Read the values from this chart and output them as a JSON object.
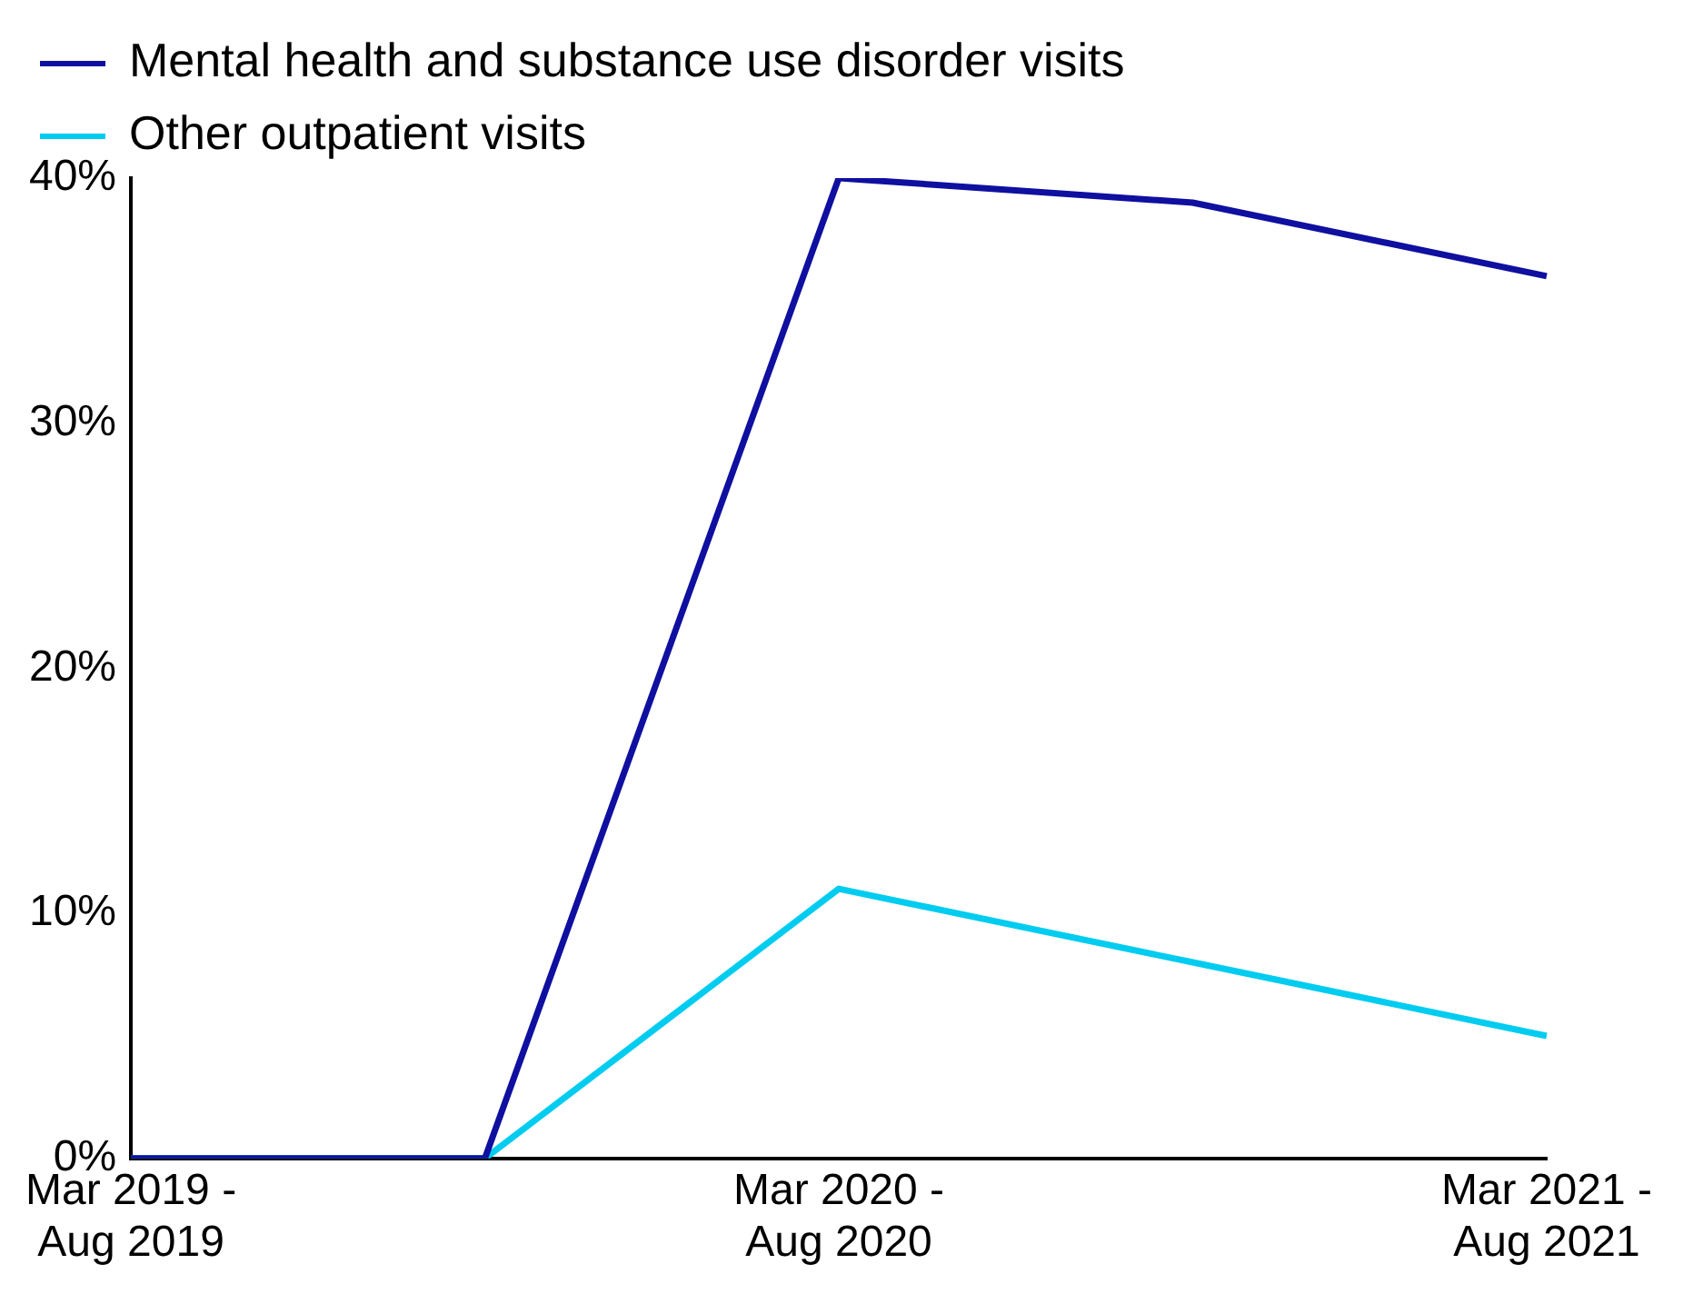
{
  "chart_data": {
    "type": "line",
    "categories": [
      "Mar 2019 -\nAug 2019",
      null,
      "Mar 2020 -\nAug 2020",
      null,
      "Mar 2021 -\nAug 2021"
    ],
    "series": [
      {
        "name": "Mental health and substance use disorder visits",
        "color": "#0f0fa0",
        "values": [
          0,
          0,
          40,
          39,
          36
        ]
      },
      {
        "name": "Other outpatient visits",
        "color": "#00ccf0",
        "values": [
          0,
          0,
          11,
          8,
          5
        ]
      }
    ],
    "ylim": [
      0,
      40
    ],
    "yticks": [
      {
        "value": 0,
        "label": "0%"
      },
      {
        "value": 10,
        "label": "10%"
      },
      {
        "value": 20,
        "label": "20%"
      },
      {
        "value": 30,
        "label": "30%"
      },
      {
        "value": 40,
        "label": "40%"
      }
    ],
    "grid": false,
    "legend": "top left",
    "marker": "none",
    "line_style": "solid"
  }
}
